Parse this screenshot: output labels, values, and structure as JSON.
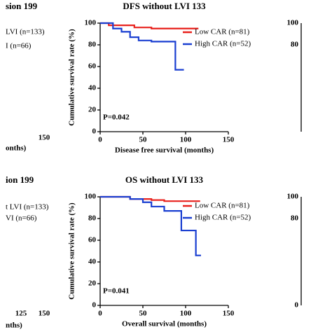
{
  "chart_data": [
    {
      "type": "line",
      "title": "DFS  without LVI 133",
      "x_label": "Disease free survival (months)",
      "y_label": "Cumulative survival rate (%)",
      "annotation": "P=0.042",
      "xlim": [
        0,
        150
      ],
      "xticks": [
        0,
        50,
        100,
        150
      ],
      "ylim": [
        0,
        100
      ],
      "yticks": [
        0,
        20,
        40,
        60,
        80,
        100
      ],
      "series": [
        {
          "name": "Low CAR (n=81)",
          "color": "#e8211c",
          "x": [
            0,
            10,
            10,
            40,
            40,
            60,
            60,
            115
          ],
          "values": [
            100,
            100,
            98,
            98,
            96,
            96,
            95,
            95
          ]
        },
        {
          "name": "High CAR (n=52)",
          "color": "#1a3fd1",
          "x": [
            0,
            15,
            15,
            25,
            25,
            35,
            35,
            45,
            45,
            60,
            60,
            88,
            88,
            98
          ],
          "values": [
            100,
            100,
            95,
            95,
            92,
            92,
            87,
            87,
            84,
            84,
            83,
            83,
            57,
            57
          ]
        }
      ]
    },
    {
      "type": "line",
      "title": "OS  without LVI 133",
      "x_label": "Overall survival (months)",
      "y_label": "Cumulative survival rate (%)",
      "annotation": "P=0.041",
      "xlim": [
        0,
        150
      ],
      "xticks": [
        0,
        50,
        100,
        150
      ],
      "ylim": [
        0,
        100
      ],
      "yticks": [
        0,
        20,
        40,
        60,
        80,
        100
      ],
      "series": [
        {
          "name": "Low CAR (n=81)",
          "color": "#e8211c",
          "x": [
            0,
            35,
            35,
            60,
            60,
            75,
            75,
            117
          ],
          "values": [
            100,
            100,
            98,
            98,
            97,
            97,
            96,
            96
          ]
        },
        {
          "name": "High CAR (n=52)",
          "color": "#1a3fd1",
          "x": [
            0,
            35,
            35,
            50,
            50,
            60,
            60,
            75,
            75,
            95,
            95,
            112,
            112,
            118
          ],
          "values": [
            100,
            100,
            98,
            98,
            95,
            95,
            91,
            91,
            87,
            87,
            69,
            69,
            46,
            46
          ]
        }
      ]
    }
  ],
  "fragments": [
    "sion 199",
    "LVI (n=133)",
    "I (n=66)",
    "150",
    "onths)",
    "ion 199",
    "t LVI (n=133)",
    "VI (n=66)",
    "125",
    "150",
    "nths)",
    "100",
    "80",
    "100",
    "80",
    "0"
  ]
}
